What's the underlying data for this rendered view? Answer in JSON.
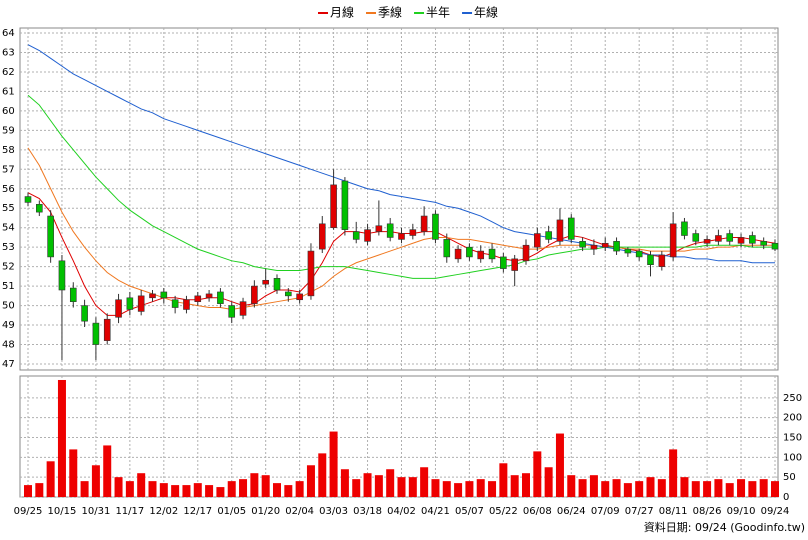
{
  "chart_data": {
    "type": "candlestick",
    "footer": "資料日期: 09/24 (Goodinfo.tw)",
    "categories": [
      "09/25",
      null,
      null,
      "10/15",
      null,
      null,
      "10/31",
      null,
      null,
      "11/17",
      null,
      null,
      "12/02",
      null,
      null,
      "12/17",
      null,
      null,
      "01/05",
      null,
      null,
      "01/20",
      null,
      null,
      "02/04",
      null,
      null,
      "03/03",
      null,
      null,
      "03/18",
      null,
      null,
      "04/02",
      null,
      null,
      "04/21",
      null,
      null,
      "05/07",
      null,
      null,
      "05/22",
      null,
      null,
      "06/08",
      null,
      null,
      "06/24",
      null,
      null,
      "07/09",
      null,
      null,
      "07/27",
      null,
      null,
      "08/11",
      null,
      null,
      "08/26",
      null,
      null,
      "09/10",
      null,
      null,
      "09/24"
    ],
    "open": [
      55.6,
      55.2,
      54.6,
      52.3,
      50.9,
      50.0,
      49.1,
      48.2,
      49.4,
      50.4,
      49.7,
      50.4,
      50.7,
      50.3,
      49.8,
      50.2,
      50.4,
      50.7,
      50.0,
      49.5,
      50.1,
      51.1,
      51.4,
      50.7,
      50.3,
      50.5,
      52.9,
      54.0,
      56.4,
      53.8,
      53.3,
      53.8,
      54.2,
      53.4,
      53.6,
      53.8,
      54.7,
      53.4,
      52.4,
      53.0,
      52.4,
      52.9,
      52.5,
      51.8,
      52.3,
      53.0,
      53.8,
      53.3,
      54.5,
      53.3,
      52.9,
      53.0,
      53.3,
      52.9,
      52.8,
      52.6,
      52.0,
      52.5,
      54.3,
      53.7,
      53.2,
      53.3,
      53.7,
      53.2,
      53.6,
      53.3,
      53.2
    ],
    "high": [
      55.8,
      55.4,
      54.9,
      52.6,
      51.2,
      50.3,
      49.4,
      49.6,
      50.6,
      50.7,
      50.8,
      50.8,
      50.9,
      50.5,
      50.5,
      50.7,
      50.8,
      50.9,
      50.2,
      50.4,
      51.3,
      51.9,
      51.6,
      50.9,
      50.8,
      53.2,
      54.6,
      57.0,
      56.6,
      54.3,
      54.2,
      55.4,
      54.5,
      54.0,
      54.2,
      55.1,
      54.9,
      53.7,
      53.1,
      53.2,
      53.1,
      53.2,
      52.7,
      52.6,
      53.4,
      54.0,
      54.1,
      55.0,
      54.7,
      53.5,
      53.4,
      53.5,
      53.5,
      53.0,
      52.9,
      52.8,
      52.8,
      54.8,
      54.5,
      53.9,
      53.6,
      53.9,
      53.9,
      53.7,
      53.8,
      53.5,
      53.4
    ],
    "low": [
      55.1,
      54.6,
      52.2,
      47.2,
      49.9,
      48.9,
      47.2,
      48.0,
      49.1,
      49.5,
      49.5,
      50.2,
      50.1,
      49.6,
      49.6,
      50.0,
      50.2,
      49.9,
      49.1,
      49.3,
      49.9,
      50.9,
      50.6,
      50.2,
      50.1,
      50.3,
      52.7,
      53.9,
      53.6,
      53.2,
      53.1,
      53.6,
      53.3,
      53.2,
      53.4,
      53.6,
      53.2,
      52.2,
      52.2,
      52.3,
      52.2,
      52.2,
      51.7,
      51.0,
      52.1,
      52.8,
      53.2,
      53.1,
      53.2,
      52.8,
      52.6,
      52.8,
      52.6,
      52.5,
      52.3,
      51.5,
      51.8,
      52.3,
      53.4,
      53.1,
      53.0,
      53.1,
      53.1,
      53.0,
      53.0,
      52.9,
      52.8
    ],
    "close": [
      55.3,
      54.8,
      52.5,
      50.8,
      50.2,
      49.2,
      48.0,
      49.3,
      50.3,
      49.8,
      50.5,
      50.6,
      50.4,
      49.9,
      50.3,
      50.5,
      50.6,
      50.1,
      49.4,
      50.2,
      51.0,
      51.3,
      50.8,
      50.5,
      50.6,
      52.8,
      54.2,
      56.2,
      53.9,
      53.4,
      53.9,
      54.1,
      53.5,
      53.7,
      53.9,
      54.6,
      53.4,
      52.5,
      52.9,
      52.5,
      52.8,
      52.4,
      51.9,
      52.4,
      53.1,
      53.7,
      53.4,
      54.4,
      53.4,
      53.0,
      53.1,
      53.2,
      52.8,
      52.7,
      52.5,
      52.1,
      52.6,
      54.2,
      53.6,
      53.3,
      53.4,
      53.6,
      53.3,
      53.5,
      53.2,
      53.1,
      52.9
    ],
    "up_color": "#e00000",
    "down_color": "#00c000",
    "series": [
      {
        "name": "月線",
        "color": "#e00000",
        "values": [
          55.8,
          55.5,
          54.8,
          53.5,
          52.3,
          51.0,
          50.0,
          49.5,
          49.5,
          49.8,
          50.0,
          50.2,
          50.4,
          50.4,
          50.3,
          50.3,
          50.4,
          50.4,
          50.2,
          50.0,
          50.1,
          50.5,
          50.8,
          50.8,
          50.7,
          51.3,
          52.2,
          53.3,
          53.8,
          53.8,
          53.7,
          53.8,
          53.8,
          53.7,
          53.7,
          53.8,
          53.8,
          53.5,
          53.2,
          52.9,
          52.7,
          52.6,
          52.4,
          52.3,
          52.4,
          52.7,
          53.1,
          53.4,
          53.6,
          53.5,
          53.3,
          53.1,
          53.0,
          52.9,
          52.8,
          52.6,
          52.5,
          52.7,
          53.0,
          53.2,
          53.3,
          53.4,
          53.5,
          53.5,
          53.4,
          53.3,
          53.2
        ]
      },
      {
        "name": "季線",
        "color": "#f07820",
        "values": [
          58.1,
          57.2,
          56.0,
          54.8,
          53.8,
          53.0,
          52.3,
          51.7,
          51.3,
          51.0,
          50.8,
          50.6,
          50.4,
          50.2,
          50.1,
          50.0,
          49.9,
          49.9,
          49.8,
          49.9,
          50.0,
          50.1,
          50.2,
          50.3,
          50.4,
          50.7,
          51.0,
          51.5,
          51.9,
          52.2,
          52.4,
          52.6,
          52.8,
          53.0,
          53.2,
          53.4,
          53.5,
          53.5,
          53.4,
          53.4,
          53.3,
          53.2,
          53.1,
          53.0,
          52.9,
          52.9,
          53.0,
          53.1,
          53.1,
          53.1,
          53.1,
          53.0,
          53.0,
          52.9,
          52.9,
          52.8,
          52.8,
          52.8,
          52.8,
          52.9,
          52.9,
          53.0,
          53.0,
          53.1,
          53.1,
          53.1,
          53.1
        ]
      },
      {
        "name": "半年",
        "color": "#20d020",
        "values": [
          60.8,
          60.3,
          59.5,
          58.7,
          58.0,
          57.3,
          56.6,
          56.0,
          55.4,
          54.9,
          54.5,
          54.1,
          53.8,
          53.5,
          53.2,
          52.9,
          52.7,
          52.5,
          52.3,
          52.2,
          52.0,
          51.9,
          51.8,
          51.8,
          51.8,
          51.9,
          52.0,
          52.0,
          52.0,
          51.9,
          51.8,
          51.7,
          51.6,
          51.5,
          51.4,
          51.4,
          51.4,
          51.5,
          51.6,
          51.7,
          51.8,
          51.9,
          52.0,
          52.1,
          52.3,
          52.4,
          52.6,
          52.7,
          52.8,
          52.9,
          52.9,
          53.0,
          53.0,
          53.0,
          53.0,
          53.0,
          53.0,
          53.0,
          53.0,
          53.0,
          53.1,
          53.1,
          53.1,
          53.1,
          53.0,
          53.0,
          53.0
        ]
      },
      {
        "name": "年線",
        "color": "#2060d0",
        "values": [
          63.4,
          63.1,
          62.7,
          62.3,
          61.9,
          61.6,
          61.3,
          61.0,
          60.7,
          60.4,
          60.1,
          59.9,
          59.6,
          59.4,
          59.2,
          59.0,
          58.8,
          58.6,
          58.4,
          58.2,
          58.0,
          57.8,
          57.6,
          57.4,
          57.2,
          57.0,
          56.8,
          56.6,
          56.4,
          56.2,
          56.0,
          55.9,
          55.7,
          55.6,
          55.5,
          55.4,
          55.3,
          55.1,
          55.0,
          54.8,
          54.6,
          54.3,
          54.0,
          53.8,
          53.7,
          53.6,
          53.5,
          53.4,
          53.3,
          53.2,
          53.1,
          53.0,
          52.9,
          52.8,
          52.7,
          52.6,
          52.6,
          52.5,
          52.5,
          52.4,
          52.4,
          52.3,
          52.3,
          52.3,
          52.2,
          52.2,
          52.2
        ]
      }
    ],
    "ylim": [
      47,
      64
    ],
    "yticks": [
      47,
      48,
      49,
      50,
      51,
      52,
      53,
      54,
      55,
      56,
      57,
      58,
      59,
      60,
      61,
      62,
      63,
      64
    ],
    "grid": true,
    "volume": {
      "color": "#ee0000",
      "ylim": [
        0,
        300
      ],
      "yticks": [
        0,
        50,
        100,
        150,
        200,
        250
      ],
      "values": [
        30,
        35,
        90,
        295,
        120,
        40,
        80,
        130,
        50,
        40,
        60,
        40,
        35,
        30,
        30,
        35,
        30,
        25,
        40,
        45,
        60,
        55,
        35,
        30,
        40,
        80,
        110,
        165,
        70,
        45,
        60,
        55,
        70,
        50,
        50,
        75,
        45,
        40,
        35,
        40,
        45,
        40,
        85,
        55,
        60,
        115,
        75,
        160,
        55,
        45,
        55,
        40,
        45,
        35,
        40,
        50,
        45,
        120,
        50,
        40,
        40,
        45,
        35,
        45,
        40,
        45,
        40
      ]
    }
  }
}
